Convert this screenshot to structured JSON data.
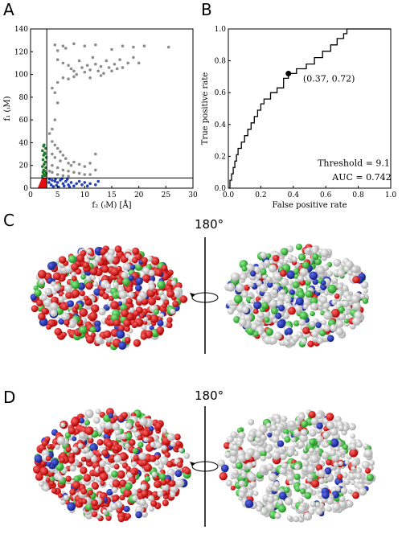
{
  "panels": {
    "A": "A",
    "B": "B",
    "C": "C",
    "D": "D"
  },
  "colors": {
    "gray_points": "#8c8c8c",
    "green_points": "#1f7a2a",
    "blue_points": "#2340b5",
    "red_region": "#e01010",
    "protein_red": "#e00000",
    "protein_blue": "#1f2fa8",
    "protein_green": "#3cb83c",
    "protein_white": "#d9d9d9"
  },
  "rotation_label": "180°",
  "chart_data": [
    {
      "type": "scatter",
      "title": "",
      "xlabel": "f₂ (ᵢM) [Å]",
      "ylabel": "f₁ (ᵢM)",
      "xlim": [
        0,
        30
      ],
      "ylim": [
        0,
        140
      ],
      "xticks": [
        "0",
        "5",
        "10",
        "15",
        "20",
        "25",
        "30"
      ],
      "yticks": [
        "0",
        "20",
        "40",
        "60",
        "80",
        "100",
        "120",
        "140"
      ],
      "threshold_lines": {
        "x": 3,
        "y": 9
      },
      "series": [
        {
          "color": "#8c8c8c",
          "points": [
            [
              4.5,
              126
            ],
            [
              5,
              121
            ],
            [
              6,
              125
            ],
            [
              6.5,
              123
            ],
            [
              8,
              127
            ],
            [
              10,
              125
            ],
            [
              12,
              126
            ],
            [
              15,
              122
            ],
            [
              17,
              125
            ],
            [
              19,
              124
            ],
            [
              21,
              125
            ],
            [
              25.5,
              124
            ],
            [
              5,
              113
            ],
            [
              6,
              110
            ],
            [
              7,
              108
            ],
            [
              7.5,
              105
            ],
            [
              8,
              103
            ],
            [
              8.5,
              100
            ],
            [
              9,
              112
            ],
            [
              9.5,
              106
            ],
            [
              10,
              102
            ],
            [
              10.5,
              108
            ],
            [
              11,
              104
            ],
            [
              11.5,
              115
            ],
            [
              12,
              109
            ],
            [
              12.5,
              103
            ],
            [
              13,
              107
            ],
            [
              13.5,
              101
            ],
            [
              14,
              112
            ],
            [
              14.5,
              106
            ],
            [
              15,
              103
            ],
            [
              15.5,
              109
            ],
            [
              16,
              105
            ],
            [
              16.5,
              113
            ],
            [
              17,
              106
            ],
            [
              18,
              110
            ],
            [
              19,
              115
            ],
            [
              20,
              110
            ],
            [
              6,
              97
            ],
            [
              7,
              96
            ],
            [
              8,
              98
            ],
            [
              11,
              97
            ],
            [
              13,
              99
            ],
            [
              5,
              93
            ],
            [
              4,
              88
            ],
            [
              4.5,
              84
            ],
            [
              5,
              75
            ],
            [
              4.5,
              60
            ],
            [
              4,
              52
            ],
            [
              3.5,
              48
            ],
            [
              4,
              41
            ],
            [
              4.5,
              38
            ],
            [
              5,
              35
            ],
            [
              5.5,
              32
            ],
            [
              4,
              30
            ],
            [
              6,
              29
            ],
            [
              4.5,
              27
            ],
            [
              5.5,
              24
            ],
            [
              6.5,
              26
            ],
            [
              7,
              22
            ],
            [
              7.5,
              20
            ],
            [
              8,
              23
            ],
            [
              9,
              21
            ],
            [
              10,
              19
            ],
            [
              11,
              22
            ],
            [
              12,
              30
            ],
            [
              12,
              16
            ],
            [
              5,
              18
            ],
            [
              6,
              16
            ],
            [
              7,
              15
            ],
            [
              8,
              14
            ],
            [
              9,
              13
            ],
            [
              10,
              12
            ],
            [
              11,
              12
            ],
            [
              4,
              20
            ],
            [
              3.5,
              15
            ],
            [
              4,
              14
            ],
            [
              5,
              12
            ],
            [
              6,
              11
            ],
            [
              7,
              10.5
            ]
          ]
        },
        {
          "color": "#1f7a2a",
          "points": [
            [
              2.5,
              38
            ],
            [
              2.8,
              35
            ],
            [
              2.2,
              33
            ],
            [
              2.6,
              31
            ],
            [
              2.4,
              29
            ],
            [
              2.9,
              27
            ],
            [
              2.3,
              25
            ],
            [
              2.7,
              23
            ],
            [
              2.5,
              21
            ],
            [
              2.2,
              19
            ],
            [
              2.8,
              18
            ],
            [
              2.4,
              16
            ],
            [
              2.6,
              15
            ],
            [
              2.3,
              14
            ],
            [
              2.9,
              13
            ],
            [
              2.5,
              12
            ],
            [
              2.7,
              11
            ],
            [
              2.2,
              10.5
            ],
            [
              2.6,
              30
            ],
            [
              2.4,
              37
            ]
          ]
        },
        {
          "color": "#2340b5",
          "points": [
            [
              3.5,
              8
            ],
            [
              4,
              7
            ],
            [
              4.5,
              6
            ],
            [
              5,
              5
            ],
            [
              5.5,
              7
            ],
            [
              6,
              4
            ],
            [
              6.5,
              6
            ],
            [
              7,
              3
            ],
            [
              7.5,
              5
            ],
            [
              8,
              2
            ],
            [
              8.5,
              4
            ],
            [
              9,
              6
            ],
            [
              9.5,
              3
            ],
            [
              10,
              5
            ],
            [
              10.5,
              2
            ],
            [
              11,
              4
            ],
            [
              3.8,
              3
            ],
            [
              4.2,
              1.5
            ],
            [
              4.8,
              2.5
            ],
            [
              5.2,
              1
            ],
            [
              6.2,
              2
            ],
            [
              7.2,
              1.2
            ],
            [
              3.4,
              5
            ],
            [
              4.6,
              8
            ],
            [
              5.8,
              8.3
            ],
            [
              6.8,
              7.8
            ],
            [
              12,
              3
            ],
            [
              12.5,
              6
            ]
          ]
        }
      ]
    },
    {
      "type": "line",
      "title": "",
      "xlabel": "False positive rate",
      "ylabel": "True positive rate",
      "xlim": [
        0,
        1
      ],
      "ylim": [
        0,
        1
      ],
      "xticks": [
        "0.0",
        "0.2",
        "0.4",
        "0.6",
        "0.8",
        "1.0"
      ],
      "yticks": [
        "0.0",
        "0.2",
        "0.4",
        "0.6",
        "0.8",
        "1.0"
      ],
      "series": [
        {
          "points": [
            [
              0,
              0
            ],
            [
              0.01,
              0.01
            ],
            [
              0.01,
              0.05
            ],
            [
              0.02,
              0.09
            ],
            [
              0.03,
              0.13
            ],
            [
              0.04,
              0.17
            ],
            [
              0.05,
              0.21
            ],
            [
              0.06,
              0.25
            ],
            [
              0.08,
              0.29
            ],
            [
              0.1,
              0.33
            ],
            [
              0.12,
              0.37
            ],
            [
              0.14,
              0.41
            ],
            [
              0.16,
              0.45
            ],
            [
              0.18,
              0.49
            ],
            [
              0.2,
              0.53
            ],
            [
              0.22,
              0.56
            ],
            [
              0.26,
              0.6
            ],
            [
              0.3,
              0.63
            ],
            [
              0.34,
              0.69
            ],
            [
              0.37,
              0.72
            ],
            [
              0.42,
              0.75
            ],
            [
              0.48,
              0.78
            ],
            [
              0.53,
              0.82
            ],
            [
              0.58,
              0.86
            ],
            [
              0.63,
              0.9
            ],
            [
              0.67,
              0.94
            ],
            [
              0.71,
              0.97
            ],
            [
              0.73,
              1.0
            ],
            [
              1.0,
              1.0
            ]
          ]
        }
      ],
      "highlight_point": [
        0.37,
        0.72
      ],
      "annotations": [
        "(0.37, 0.72)",
        "Threshold = 9.1",
        "AUC = 0.742"
      ]
    }
  ]
}
